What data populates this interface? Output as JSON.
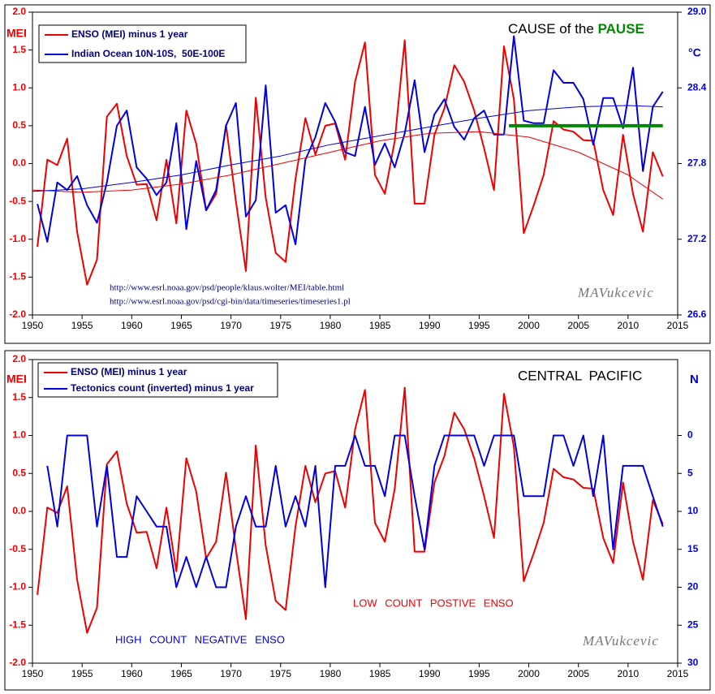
{
  "chart_data": [
    {
      "type": "line",
      "title_parts": [
        "CAUSE of the ",
        "PAUSE"
      ],
      "y_label": "MEI",
      "y2_label": "°C",
      "annotations": [
        "http://www.esrl.noaa.gov/psd/people/klaus.wolter/MEI/table.html",
        "http://www.esrl.noaa.gov/psd/cgi-bin/data/timeseries/timeseries1.pl",
        "MAVukcevic"
      ],
      "xlim": [
        1950,
        2015
      ],
      "xticks": [
        1950,
        1955,
        1960,
        1965,
        1970,
        1975,
        1980,
        1985,
        1990,
        1995,
        2000,
        2005,
        2010,
        2015
      ],
      "ylim": [
        -2,
        2
      ],
      "yticks": [
        {
          "value": -2,
          "label": "-2.0"
        },
        -1.5,
        {
          "value": -1,
          "label": "-1.0"
        },
        -0.5,
        {
          "value": 0,
          "label": "0.0"
        },
        0.5,
        {
          "value": 1,
          "label": "1.0"
        },
        1.5,
        {
          "value": 2,
          "label": "2.0"
        }
      ],
      "y2lim": [
        26.6,
        29.0
      ],
      "y2ticks": [
        26.6,
        27.2,
        27.8,
        28.4,
        {
          "value": 29,
          "label": "29.0"
        }
      ],
      "x": [
        1950.5,
        1951.5,
        1952.5,
        1953.5,
        1954.5,
        1955.5,
        1956.5,
        1957.5,
        1958.5,
        1959.5,
        1960.5,
        1961.5,
        1962.5,
        1963.5,
        1964.5,
        1965.5,
        1966.5,
        1967.5,
        1968.5,
        1969.5,
        1970.5,
        1971.5,
        1972.5,
        1973.5,
        1974.5,
        1975.5,
        1976.5,
        1977.5,
        1978.5,
        1979.5,
        1980.5,
        1981.5,
        1982.5,
        1983.5,
        1984.5,
        1985.5,
        1986.5,
        1987.5,
        1988.5,
        1989.5,
        1990.5,
        1991.5,
        1992.5,
        1993.5,
        1994.5,
        1995.5,
        1996.5,
        1997.5,
        1998.5,
        1999.5,
        2000.5,
        2001.5,
        2002.5,
        2003.5,
        2004.5,
        2005.5,
        2006.5,
        2007.5,
        2008.5,
        2009.5,
        2010.5,
        2011.5,
        2012.5,
        2013.5
      ],
      "series": [
        {
          "name": "ENSO (MEI) minus 1 year",
          "color": "#ee0000",
          "width": 2,
          "values": [
            -1.1,
            0.05,
            -0.02,
            0.33,
            -0.9,
            -1.6,
            -1.27,
            0.62,
            0.79,
            0.1,
            -0.28,
            -0.27,
            -0.75,
            0.05,
            -0.79,
            0.7,
            0.26,
            -0.62,
            -0.4,
            0.51,
            -0.5,
            -1.42,
            0.87,
            -0.45,
            -1.18,
            -1.3,
            -0.2,
            0.6,
            0.12,
            0.5,
            0.53,
            0.05,
            1.08,
            1.6,
            -0.15,
            -0.4,
            0.3,
            1.63,
            -0.53,
            -0.53,
            0.38,
            0.73,
            1.3,
            1.08,
            0.7,
            0.2,
            -0.35,
            1.55,
            0.85,
            -0.92,
            -0.55,
            -0.15,
            0.56,
            0.45,
            0.42,
            0.31,
            0.3,
            -0.35,
            -0.68,
            0.38,
            -0.4,
            -0.9,
            0.15,
            -0.17
          ]
        },
        {
          "name": "Indian Ocean 10N-10S,  50E-100E",
          "color": "#0000dd",
          "width": 2,
          "axis": "y2",
          "values": [
            27.48,
            27.18,
            27.65,
            27.59,
            27.7,
            27.47,
            27.33,
            27.65,
            28.1,
            28.22,
            27.77,
            27.68,
            27.55,
            27.65,
            28.12,
            27.28,
            27.82,
            27.43,
            27.59,
            28.1,
            28.28,
            27.38,
            27.51,
            28.42,
            27.41,
            27.47,
            27.16,
            27.83,
            28.01,
            28.28,
            28.13,
            27.89,
            27.86,
            28.25,
            27.79,
            27.96,
            27.77,
            28.04,
            28.46,
            27.89,
            28.19,
            28.31,
            28.09,
            27.99,
            28.16,
            28.22,
            28.03,
            28.03,
            28.81,
            28.14,
            28.12,
            28.12,
            28.54,
            28.44,
            28.44,
            28.31,
            27.95,
            28.32,
            28.32,
            28.08,
            28.56,
            27.74,
            28.25,
            28.37
          ]
        },
        {
          "color": "#ee0000",
          "width": 1,
          "x": [
            1950,
            1955,
            1960,
            1965,
            1970,
            1975,
            1980,
            1985,
            1990,
            1995,
            2000,
            2005,
            2010,
            2013.5
          ],
          "values": [
            -0.35,
            -0.38,
            -0.35,
            -0.27,
            -0.15,
            0,
            0.15,
            0.3,
            0.4,
            0.42,
            0.35,
            0.15,
            -0.15,
            -0.47
          ]
        },
        {
          "color": "#0000dd",
          "width": 1,
          "axis": "y2",
          "x": [
            1950,
            1955,
            1960,
            1965,
            1970,
            1975,
            1980,
            1985,
            1990,
            1995,
            2000,
            2005,
            2010,
            2013.5
          ],
          "values": [
            27.58,
            27.6,
            27.65,
            27.71,
            27.79,
            27.86,
            27.95,
            28.02,
            28.09,
            28.16,
            28.22,
            28.25,
            28.26,
            28.25
          ]
        },
        {
          "color": "#008800",
          "width": 4,
          "x": [
            1998,
            2013.5
          ],
          "values": [
            0.5,
            0.5
          ]
        }
      ]
    },
    {
      "type": "line",
      "title": "CENTRAL PACIFIC",
      "y_label": "MEI",
      "y2_label": "N",
      "annotations": [
        "LOW COUNT POSTIVE ENSO",
        "HIGH COUNT NEGATIVE ENSO",
        "MAVukcevic"
      ],
      "xlim": [
        1950,
        2015
      ],
      "xticks": [
        1950,
        1955,
        1960,
        1965,
        1970,
        1975,
        1980,
        1985,
        1990,
        1995,
        2000,
        2005,
        2010,
        2015
      ],
      "ylim": [
        -2,
        2
      ],
      "yticks": [
        {
          "value": -2,
          "label": "-2.0"
        },
        -1.5,
        {
          "value": -1,
          "label": "-1.0"
        },
        -0.5,
        {
          "value": 0,
          "label": "0.0"
        },
        0.5,
        {
          "value": 1,
          "label": "1.0"
        },
        1.5,
        {
          "value": 2,
          "label": "2.0"
        }
      ],
      "y2lim": [
        30,
        -10
      ],
      "y2ticks": [
        0,
        5,
        10,
        15,
        20,
        25,
        30
      ],
      "x": [
        1950.5,
        1951.5,
        1952.5,
        1953.5,
        1954.5,
        1955.5,
        1956.5,
        1957.5,
        1958.5,
        1959.5,
        1960.5,
        1961.5,
        1962.5,
        1963.5,
        1964.5,
        1965.5,
        1966.5,
        1967.5,
        1968.5,
        1969.5,
        1970.5,
        1971.5,
        1972.5,
        1973.5,
        1974.5,
        1975.5,
        1976.5,
        1977.5,
        1978.5,
        1979.5,
        1980.5,
        1981.5,
        1982.5,
        1983.5,
        1984.5,
        1985.5,
        1986.5,
        1987.5,
        1988.5,
        1989.5,
        1990.5,
        1991.5,
        1992.5,
        1993.5,
        1994.5,
        1995.5,
        1996.5,
        1997.5,
        1998.5,
        1999.5,
        2000.5,
        2001.5,
        2002.5,
        2003.5,
        2004.5,
        2005.5,
        2006.5,
        2007.5,
        2008.5,
        2009.5,
        2010.5,
        2011.5,
        2012.5,
        2013.5
      ],
      "series": [
        {
          "name": "ENSO (MEI) minus 1 year",
          "color": "#ee0000",
          "width": 2,
          "values": [
            -1.1,
            0.05,
            -0.02,
            0.33,
            -0.9,
            -1.6,
            -1.27,
            0.62,
            0.79,
            0.1,
            -0.28,
            -0.27,
            -0.75,
            0.05,
            -0.79,
            0.7,
            0.26,
            -0.62,
            -0.4,
            0.51,
            -0.5,
            -1.42,
            0.87,
            -0.45,
            -1.18,
            -1.3,
            -0.2,
            0.6,
            0.12,
            0.5,
            0.53,
            0.05,
            1.08,
            1.6,
            -0.15,
            -0.4,
            0.3,
            1.63,
            -0.53,
            -0.53,
            0.38,
            0.73,
            1.3,
            1.08,
            0.7,
            0.2,
            -0.35,
            1.55,
            0.85,
            -0.92,
            -0.55,
            -0.15,
            0.56,
            0.45,
            0.42,
            0.31,
            0.3,
            -0.35,
            -0.68,
            0.38,
            -0.4,
            -0.9,
            0.15,
            -0.17
          ]
        },
        {
          "name": "Tectonics count (inverted) minus 1 year",
          "color": "#0000dd",
          "width": 2,
          "axis": "y2",
          "x": [
            1951.5,
            1952.5,
            1953.5,
            1954.5,
            1955.5,
            1956.5,
            1957.5,
            1958.5,
            1959.5,
            1960.5,
            1961.5,
            1962.5,
            1963.5,
            1964.5,
            1965.5,
            1966.5,
            1967.5,
            1968.5,
            1969.5,
            1970.5,
            1971.5,
            1972.5,
            1973.5,
            1974.5,
            1975.5,
            1976.5,
            1977.5,
            1978.5,
            1979.5,
            1980.5,
            1981.5,
            1982.5,
            1983.5,
            1984.5,
            1985.5,
            1986.5,
            1987.5,
            1988.5,
            1989.5,
            1990.5,
            1991.5,
            1992.5,
            1993.5,
            1994.5,
            1995.5,
            1996.5,
            1997.5,
            1998.5,
            1999.5,
            2000.5,
            2001.5,
            2002.5,
            2003.5,
            2004.5,
            2005.5,
            2006.5,
            2007.5,
            2008.5,
            2009.5,
            2010.5,
            2011.5,
            2012.5,
            2013.5
          ],
          "values": [
            4,
            12,
            0,
            0,
            0,
            12,
            4,
            16,
            16,
            8,
            10,
            12,
            12,
            20,
            16,
            20,
            16,
            20,
            20,
            12,
            8,
            12,
            12,
            4,
            12,
            8,
            12,
            4,
            20,
            4,
            4,
            0,
            4,
            4,
            8,
            0,
            0,
            8,
            15,
            4,
            0,
            0,
            0,
            0,
            4,
            0,
            0,
            0,
            8,
            8,
            8,
            0,
            0,
            4,
            0,
            8,
            0,
            15,
            4,
            4,
            4,
            8,
            12
          ]
        }
      ]
    }
  ]
}
